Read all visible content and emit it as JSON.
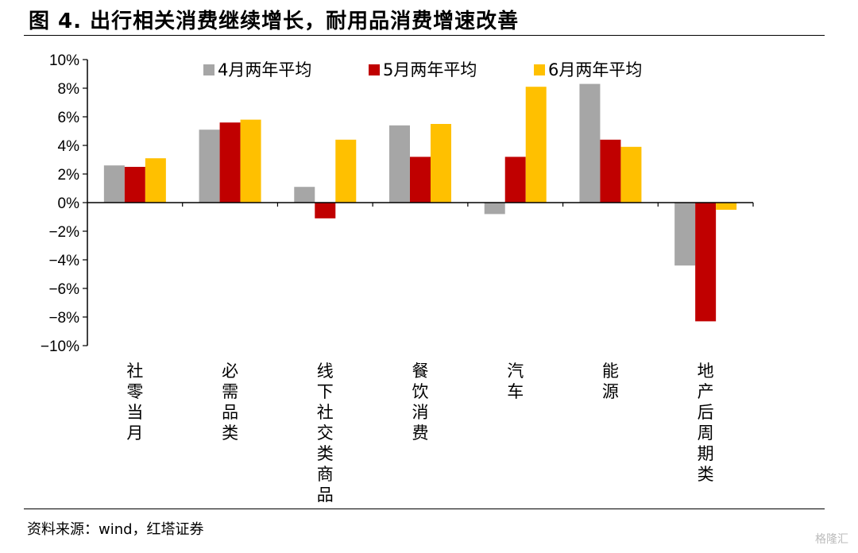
{
  "title": "图 4. 出行相关消费继续增长，耐用品消费增速改善",
  "source": "资料来源：wind，红塔证券",
  "watermark": "格隆汇",
  "chart_data": {
    "type": "bar",
    "categories": [
      "社零当月",
      "必需品类",
      "线下社交类商品",
      "餐饮消费",
      "汽车",
      "能源",
      "地产后周期类"
    ],
    "series": [
      {
        "name": "4月两年平均",
        "color": "#a6a6a6",
        "values": [
          2.6,
          5.1,
          1.1,
          5.4,
          -0.8,
          8.3,
          -4.4
        ]
      },
      {
        "name": "5月两年平均",
        "color": "#c00000",
        "values": [
          2.5,
          5.6,
          -1.1,
          3.2,
          3.2,
          4.4,
          -8.3
        ]
      },
      {
        "name": "6月两年平均",
        "color": "#ffc000",
        "values": [
          3.1,
          5.8,
          4.4,
          5.5,
          8.1,
          3.9,
          -0.5
        ]
      }
    ],
    "y_ticks": [
      "10%",
      "8%",
      "6%",
      "4%",
      "2%",
      "0%",
      "−2%",
      "−4%",
      "−6%",
      "−8%",
      "−10%"
    ],
    "ylim": [
      -10,
      10
    ],
    "xlabel": "",
    "ylabel": "",
    "grid": false,
    "legend_position": "top"
  }
}
